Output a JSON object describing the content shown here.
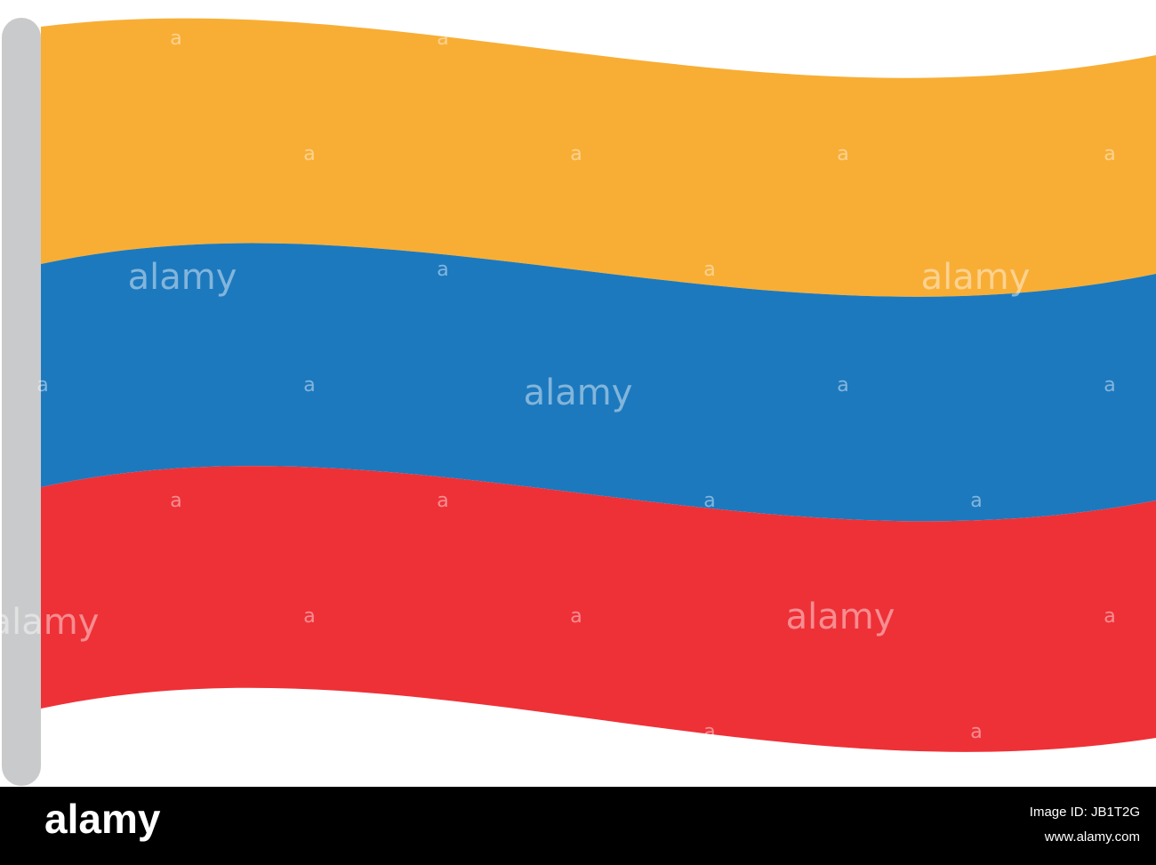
{
  "watermark": {
    "word": "alamy",
    "letter": "a"
  },
  "footer": {
    "logo": "alamy",
    "image_id": "Image ID: JB1T2G",
    "url": "www.alamy.com"
  }
}
